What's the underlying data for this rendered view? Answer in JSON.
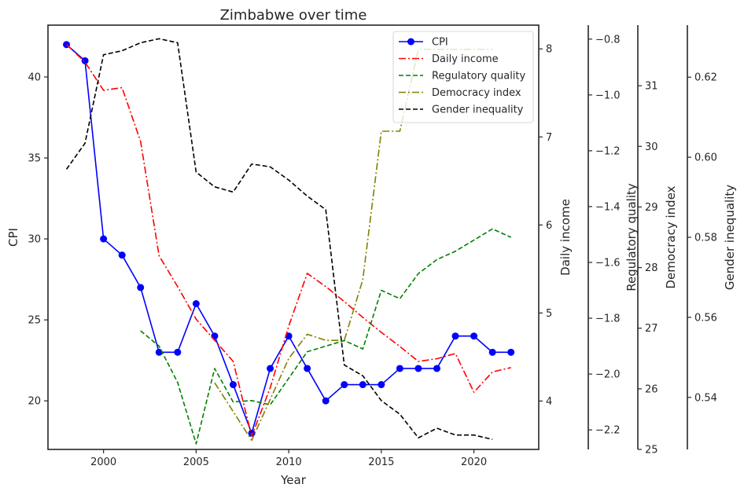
{
  "chart_data": {
    "type": "line",
    "title": "Zimbabwe over time",
    "xlabel": "Year",
    "x_ticks": [
      2000,
      2005,
      2010,
      2015,
      2020
    ],
    "xlim": [
      1997,
      2023.5
    ],
    "legend_position": "top-right",
    "axes": {
      "cpi": {
        "label": "CPI",
        "range": [
          17,
          43.2
        ],
        "ticks": [
          20,
          25,
          30,
          35,
          40
        ],
        "tick_labels": [
          "20",
          "25",
          "30",
          "35",
          "40"
        ]
      },
      "daily_income": {
        "label": "Daily income",
        "range": [
          3.45,
          8.27
        ],
        "ticks": [
          4,
          5,
          6,
          7,
          8
        ],
        "tick_labels": [
          "4",
          "5",
          "6",
          "7",
          "8"
        ]
      },
      "regulatory_quality": {
        "label": "Regulatory quality",
        "range": [
          -2.27,
          -0.75
        ],
        "ticks": [
          -2.2,
          -2.0,
          -1.8,
          -1.6,
          -1.4,
          -1.2,
          -1.0,
          -0.8
        ],
        "tick_labels": [
          "−2.2",
          "−2.0",
          "−1.8",
          "−1.6",
          "−1.4",
          "−1.2",
          "−1.0",
          "−0.8"
        ]
      },
      "democracy_index": {
        "label": "Democracy index",
        "range": [
          25,
          32
        ],
        "ticks": [
          25,
          26,
          27,
          28,
          29,
          30,
          31
        ],
        "tick_labels": [
          "25",
          "26",
          "27",
          "28",
          "29",
          "30",
          "31"
        ]
      },
      "gender_inequality": {
        "label": "Gender inequality",
        "range": [
          0.527,
          0.633
        ],
        "ticks": [
          0.54,
          0.56,
          0.58,
          0.6,
          0.62
        ],
        "tick_labels": [
          "0.54",
          "0.56",
          "0.58",
          "0.60",
          "0.62"
        ]
      }
    },
    "series": [
      {
        "name": "CPI",
        "axis": "cpi",
        "color": "#0000ff",
        "dash": "solid",
        "marker": "circle",
        "x": [
          1998,
          1999,
          2000,
          2001,
          2002,
          2003,
          2004,
          2005,
          2006,
          2007,
          2008,
          2009,
          2010,
          2011,
          2012,
          2013,
          2014,
          2015,
          2016,
          2017,
          2018,
          2019,
          2020,
          2021,
          2022
        ],
        "y": [
          42,
          41,
          30,
          29,
          27,
          23,
          23,
          26,
          24,
          21,
          18,
          22,
          24,
          22,
          20,
          21,
          21,
          21,
          22,
          22,
          22,
          24,
          24,
          23,
          23
        ]
      },
      {
        "name": "Daily income",
        "axis": "daily_income",
        "color": "#ff0000",
        "dash": "dashdot",
        "marker": "none",
        "x": [
          1998,
          1999,
          2000,
          2001,
          2002,
          2003,
          2004,
          2005,
          2006,
          2007,
          2008,
          2009,
          2010,
          2011,
          2012,
          2013,
          2014,
          2015,
          2016,
          2017,
          2018,
          2019,
          2020,
          2021,
          2022
        ],
        "y": [
          8.05,
          7.85,
          7.53,
          7.56,
          6.95,
          5.65,
          5.3,
          4.93,
          4.69,
          4.45,
          3.6,
          4.15,
          4.85,
          5.45,
          5.3,
          5.13,
          4.95,
          4.78,
          4.62,
          4.45,
          4.48,
          4.54,
          4.1,
          4.33,
          4.38
        ]
      },
      {
        "name": "Regulatory quality",
        "axis": "regulatory_quality",
        "color": "#008000",
        "dash": "dashed",
        "marker": "none",
        "x": [
          2002,
          2003,
          2004,
          2005,
          2006,
          2007,
          2008,
          2009,
          2010,
          2011,
          2012,
          2013,
          2014,
          2015,
          2016,
          2017,
          2018,
          2019,
          2020,
          2021,
          2022
        ],
        "y": [
          -1.845,
          -1.9,
          -2.03,
          -2.25,
          -1.98,
          -2.1,
          -2.095,
          -2.11,
          -2.015,
          -1.92,
          -1.9,
          -1.88,
          -1.91,
          -1.7,
          -1.73,
          -1.64,
          -1.59,
          -1.56,
          -1.52,
          -1.48,
          -1.51
        ]
      },
      {
        "name": "Democracy index",
        "axis": "democracy_index",
        "color": "#808000",
        "dash": "dashdot",
        "marker": "none",
        "x": [
          2006,
          2008,
          2010,
          2011,
          2012,
          2013,
          2014,
          2015,
          2016,
          2017,
          2018,
          2019,
          2020,
          2021
        ],
        "y": [
          26.1,
          25.15,
          26.5,
          26.9,
          26.8,
          26.8,
          27.8,
          30.25,
          30.25,
          31.6,
          31.6,
          31.6,
          31.6,
          31.6
        ]
      },
      {
        "name": "Gender inequality",
        "axis": "gender_inequality",
        "color": "#000000",
        "dash": "dashed",
        "marker": "none",
        "x": [
          1998,
          1999,
          2000,
          2001,
          2002,
          2003,
          2004,
          2005,
          2006,
          2007,
          2008,
          2009,
          2010,
          2011,
          2012,
          2013,
          2014,
          2015,
          2016,
          2017,
          2018,
          2019,
          2020,
          2021
        ],
        "y": [
          0.597,
          0.6035,
          0.6256,
          0.6266,
          0.6286,
          0.6296,
          0.6286,
          0.5963,
          0.5926,
          0.5913,
          0.5983,
          0.5976,
          0.5943,
          0.5903,
          0.5869,
          0.5481,
          0.5454,
          0.5392,
          0.5358,
          0.5299,
          0.5323,
          0.5306,
          0.5306,
          0.5295
        ]
      }
    ]
  }
}
